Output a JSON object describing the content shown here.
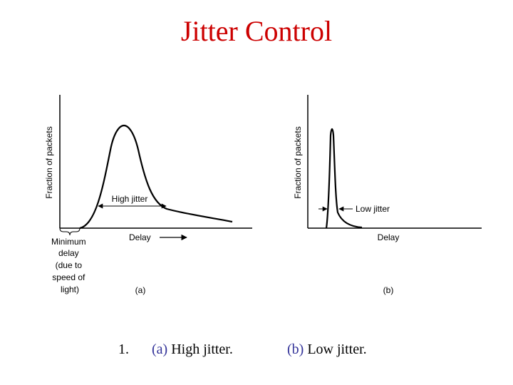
{
  "slide": {
    "title": "Jitter Control",
    "colors": {
      "title": "#cc0000",
      "caption_tag": "#333399",
      "curve": "#000000"
    }
  },
  "figure_a": {
    "y_axis_label": "Fraction of packets",
    "jitter_label": "High jitter",
    "x_axis_label": "Delay",
    "min_delay_lines": [
      "Minimum",
      "delay",
      "(due to",
      "speed of",
      "light)"
    ],
    "panel_label": "(a)"
  },
  "figure_b": {
    "y_axis_label": "Fraction of packets",
    "jitter_label": "Low jitter",
    "x_axis_label": "Delay",
    "panel_label": "(b)"
  },
  "captions": {
    "number": "1.",
    "a_tag": "(a)",
    "a_text": " High jitter.",
    "b_tag": "(b)",
    "b_text": " Low jitter."
  }
}
